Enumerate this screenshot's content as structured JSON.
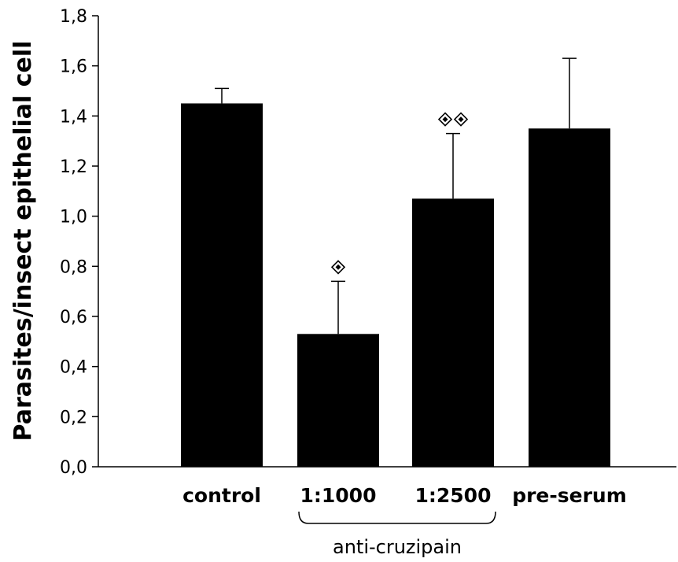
{
  "chart_data": {
    "type": "bar",
    "ylabel": "Parasites/insect epithelial cell",
    "categories": [
      "control",
      "1:1000",
      "1:2500",
      "pre-serum"
    ],
    "values": [
      1.45,
      0.53,
      1.07,
      1.35
    ],
    "error_upper": [
      0.06,
      0.21,
      0.26,
      0.28
    ],
    "significance_markers": [
      0,
      1,
      2,
      0
    ],
    "ylim": [
      0.0,
      1.8
    ],
    "yticks": [
      0.0,
      0.2,
      0.4,
      0.6,
      0.8,
      1.0,
      1.2,
      1.4,
      1.6,
      1.8
    ],
    "ytick_labels": [
      "0,0",
      "0,2",
      "0,4",
      "0,6",
      "0,8",
      "1,0",
      "1,2",
      "1,4",
      "1,6",
      "1,8"
    ],
    "group_bracket": {
      "label": "anti-cruzipain",
      "categories": [
        "1:1000",
        "1:2500"
      ]
    },
    "grid": false,
    "bar_color": "#000000"
  }
}
